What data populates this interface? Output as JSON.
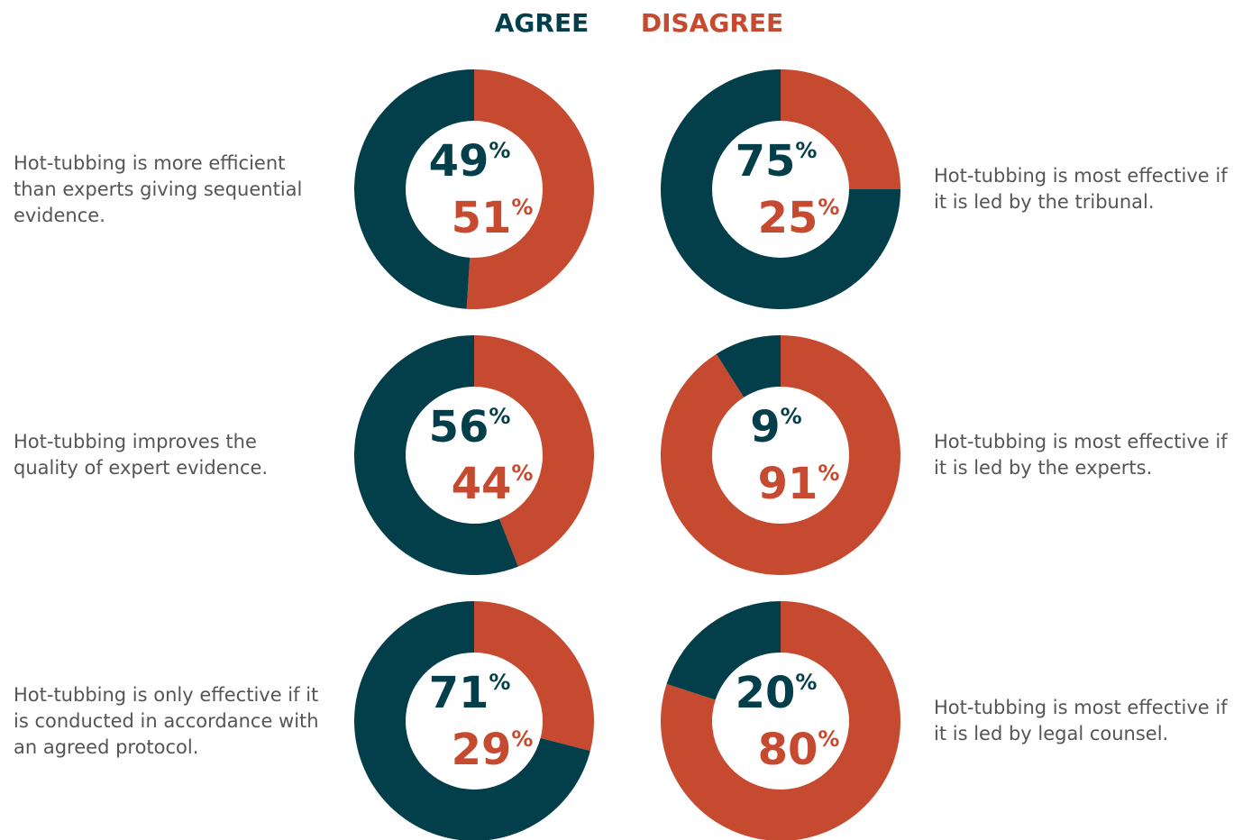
{
  "legend": {
    "categories": [
      "AGREE",
      "DISAGREE"
    ],
    "colors": [
      "#033f4a",
      "#c64a2f"
    ]
  },
  "chart_data": [
    {
      "type": "pie",
      "title": "Hot-tubbing is more efficient than experts giving sequential evidence.",
      "values": [
        49,
        51
      ],
      "value_labels": [
        "49%",
        "51%"
      ]
    },
    {
      "type": "pie",
      "title": "Hot-tubbing is most effective if it is led by the tribunal.",
      "values": [
        75,
        25
      ],
      "value_labels": [
        "75%",
        "25%"
      ]
    },
    {
      "type": "pie",
      "title": "Hot-tubbing improves the quality of expert evidence.",
      "values": [
        56,
        44
      ],
      "value_labels": [
        "56%",
        "44%"
      ]
    },
    {
      "type": "pie",
      "title": "Hot-tubbing is most effective if it is led by the experts.",
      "values": [
        9,
        91
      ],
      "value_labels": [
        "9%",
        "91%"
      ]
    },
    {
      "type": "pie",
      "title": "Hot-tubbing is only effective if it is conducted in accordance with an agreed protocol.",
      "values": [
        71,
        29
      ],
      "value_labels": [
        "71%",
        "29%"
      ]
    },
    {
      "type": "pie",
      "title": "Hot-tubbing is most effective if it is led by legal counsel.",
      "values": [
        20,
        80
      ],
      "value_labels": [
        "20%",
        "80%"
      ]
    }
  ]
}
